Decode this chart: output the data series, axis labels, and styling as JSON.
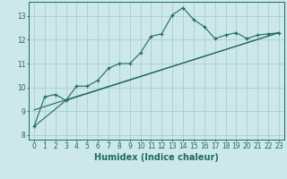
{
  "xlabel": "Humidex (Indice chaleur)",
  "ylabel": "",
  "background_color": "#cce8e8",
  "grid_color": "#aacece",
  "line_color": "#1e6b60",
  "xlim": [
    -0.5,
    23.5
  ],
  "ylim": [
    7.8,
    13.6
  ],
  "yticks": [
    8,
    9,
    10,
    11,
    12,
    13
  ],
  "xticks": [
    0,
    1,
    2,
    3,
    4,
    5,
    6,
    7,
    8,
    9,
    10,
    11,
    12,
    13,
    14,
    15,
    16,
    17,
    18,
    19,
    20,
    21,
    22,
    23
  ],
  "line1_x": [
    0,
    1,
    2,
    3,
    4,
    5,
    6,
    7,
    8,
    9,
    10,
    11,
    12,
    13,
    14,
    15,
    16,
    17,
    18,
    19,
    20,
    21,
    22,
    23
  ],
  "line1_y": [
    8.35,
    9.6,
    9.7,
    9.45,
    10.05,
    10.05,
    10.3,
    10.8,
    11.0,
    11.0,
    11.45,
    12.15,
    12.25,
    13.05,
    13.35,
    12.85,
    12.55,
    12.05,
    12.2,
    12.3,
    12.05,
    12.2,
    12.25,
    12.3
  ],
  "line2_x": [
    0,
    3,
    23
  ],
  "line2_y": [
    8.35,
    9.45,
    12.3
  ],
  "line3_x": [
    0,
    23
  ],
  "line3_y": [
    9.05,
    12.3
  ],
  "font_size_label": 6.5,
  "font_size_tick": 5.5,
  "font_size_xlabel": 7.0
}
